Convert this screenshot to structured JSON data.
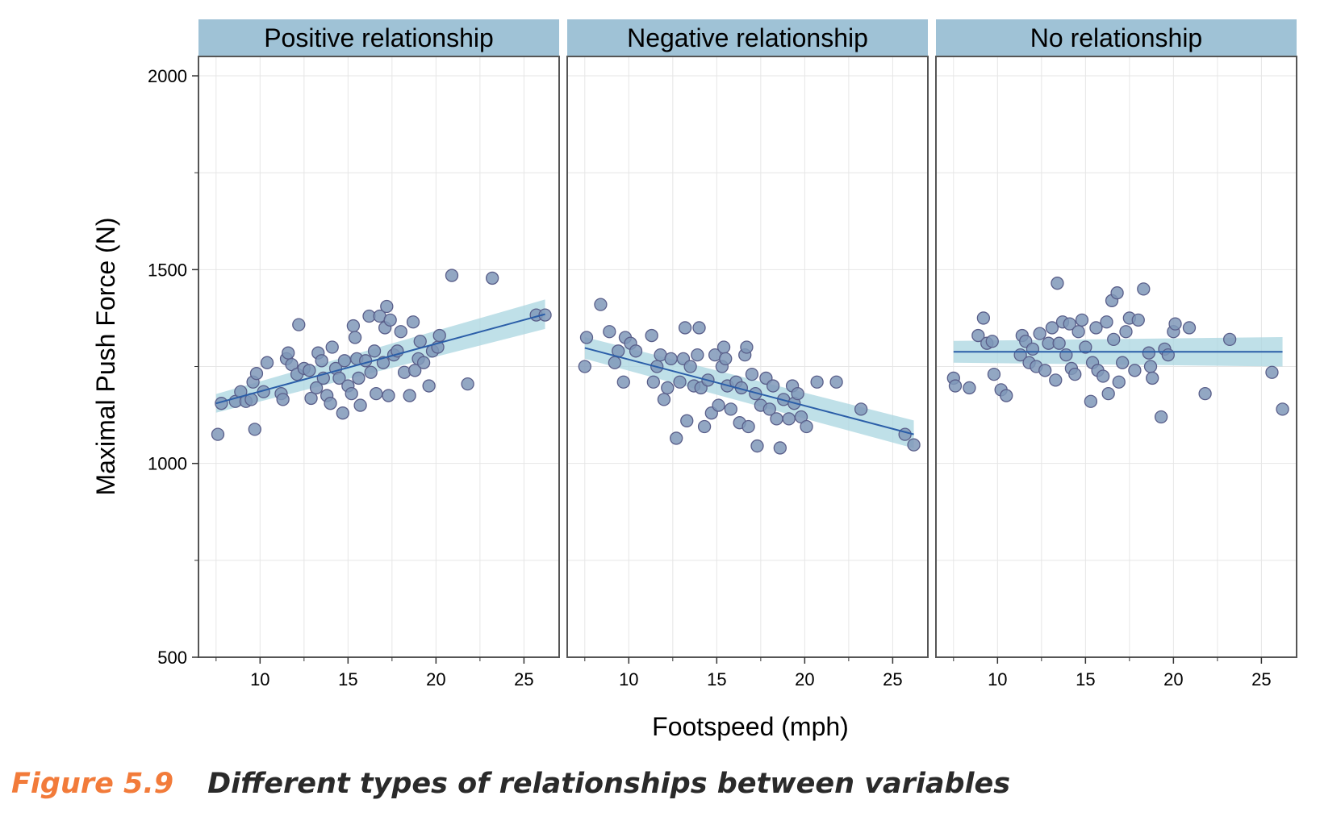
{
  "chart_data": {
    "type": "scatter",
    "xlabel": "Footspeed (mph)",
    "ylabel": "Maximal Push Force (N)",
    "xlim": [
      6.5,
      27
    ],
    "ylim": [
      500,
      2050
    ],
    "x_ticks": [
      10,
      15,
      20,
      25
    ],
    "y_ticks": [
      500,
      1000,
      1500,
      2000
    ],
    "grid": true,
    "colors": {
      "point_fill": "#7f98b8",
      "point_stroke": "#5a5f8a",
      "line": "#2b5ea8",
      "band": "#a9d6e0",
      "strip": "#9fc2d6",
      "panel_border": "#555555",
      "grid": "#e6e6e6"
    },
    "panels": [
      {
        "title": "Positive relationship",
        "fit": {
          "x": [
            7.5,
            26.2
          ],
          "y": [
            1155,
            1385
          ],
          "band_half_width": [
            24,
            38
          ]
        },
        "points": [
          [
            7.6,
            1075
          ],
          [
            7.8,
            1155
          ],
          [
            8.6,
            1160
          ],
          [
            8.9,
            1185
          ],
          [
            9.2,
            1160
          ],
          [
            9.5,
            1165
          ],
          [
            9.6,
            1210
          ],
          [
            9.7,
            1088
          ],
          [
            9.8,
            1232
          ],
          [
            10.2,
            1185
          ],
          [
            10.4,
            1260
          ],
          [
            11.2,
            1180
          ],
          [
            11.3,
            1165
          ],
          [
            11.5,
            1270
          ],
          [
            11.6,
            1285
          ],
          [
            11.8,
            1255
          ],
          [
            12.1,
            1230
          ],
          [
            12.2,
            1358
          ],
          [
            12.5,
            1245
          ],
          [
            12.8,
            1240
          ],
          [
            12.9,
            1168
          ],
          [
            13.2,
            1195
          ],
          [
            13.3,
            1285
          ],
          [
            13.5,
            1265
          ],
          [
            13.6,
            1220
          ],
          [
            13.8,
            1175
          ],
          [
            14,
            1155
          ],
          [
            14.1,
            1300
          ],
          [
            14.3,
            1245
          ],
          [
            14.5,
            1220
          ],
          [
            14.7,
            1130
          ],
          [
            14.8,
            1265
          ],
          [
            15,
            1200
          ],
          [
            15.2,
            1180
          ],
          [
            15.3,
            1355
          ],
          [
            15.4,
            1325
          ],
          [
            15.5,
            1270
          ],
          [
            15.6,
            1220
          ],
          [
            15.7,
            1150
          ],
          [
            16,
            1265
          ],
          [
            16.2,
            1380
          ],
          [
            16.3,
            1235
          ],
          [
            16.5,
            1290
          ],
          [
            16.6,
            1180
          ],
          [
            16.8,
            1380
          ],
          [
            17,
            1260
          ],
          [
            17.1,
            1350
          ],
          [
            17.2,
            1405
          ],
          [
            17.3,
            1175
          ],
          [
            17.4,
            1370
          ],
          [
            17.6,
            1280
          ],
          [
            17.8,
            1290
          ],
          [
            18,
            1340
          ],
          [
            18.2,
            1235
          ],
          [
            18.5,
            1175
          ],
          [
            18.7,
            1365
          ],
          [
            18.8,
            1240
          ],
          [
            19,
            1270
          ],
          [
            19.1,
            1315
          ],
          [
            19.3,
            1260
          ],
          [
            19.6,
            1200
          ],
          [
            19.8,
            1290
          ],
          [
            20.1,
            1300
          ],
          [
            20.2,
            1330
          ],
          [
            20.9,
            1485
          ],
          [
            21.8,
            1205
          ],
          [
            23.2,
            1478
          ],
          [
            25.7,
            1383
          ],
          [
            26.2,
            1383
          ]
        ]
      },
      {
        "title": "Negative relationship",
        "fit": {
          "x": [
            7.5,
            26.2
          ],
          "y": [
            1298,
            1075
          ],
          "band_half_width": [
            28,
            36
          ]
        },
        "points": [
          [
            7.5,
            1250
          ],
          [
            7.6,
            1325
          ],
          [
            8.4,
            1410
          ],
          [
            8.9,
            1340
          ],
          [
            9.2,
            1260
          ],
          [
            9.4,
            1290
          ],
          [
            9.7,
            1210
          ],
          [
            9.8,
            1325
          ],
          [
            10.1,
            1310
          ],
          [
            10.4,
            1290
          ],
          [
            11.3,
            1330
          ],
          [
            11.4,
            1210
          ],
          [
            11.6,
            1250
          ],
          [
            11.8,
            1280
          ],
          [
            12,
            1165
          ],
          [
            12.2,
            1195
          ],
          [
            12.4,
            1270
          ],
          [
            12.7,
            1065
          ],
          [
            12.9,
            1210
          ],
          [
            13.1,
            1270
          ],
          [
            13.2,
            1350
          ],
          [
            13.3,
            1110
          ],
          [
            13.5,
            1250
          ],
          [
            13.7,
            1200
          ],
          [
            13.9,
            1280
          ],
          [
            14,
            1350
          ],
          [
            14.1,
            1195
          ],
          [
            14.3,
            1095
          ],
          [
            14.5,
            1215
          ],
          [
            14.7,
            1130
          ],
          [
            14.9,
            1280
          ],
          [
            15.1,
            1150
          ],
          [
            15.3,
            1250
          ],
          [
            15.4,
            1300
          ],
          [
            15.5,
            1270
          ],
          [
            15.6,
            1200
          ],
          [
            15.8,
            1140
          ],
          [
            16.1,
            1210
          ],
          [
            16.3,
            1105
          ],
          [
            16.4,
            1195
          ],
          [
            16.6,
            1280
          ],
          [
            16.7,
            1300
          ],
          [
            16.8,
            1095
          ],
          [
            17,
            1230
          ],
          [
            17.2,
            1180
          ],
          [
            17.3,
            1045
          ],
          [
            17.5,
            1150
          ],
          [
            17.8,
            1220
          ],
          [
            18,
            1140
          ],
          [
            18.2,
            1200
          ],
          [
            18.4,
            1115
          ],
          [
            18.6,
            1040
          ],
          [
            18.8,
            1165
          ],
          [
            19.1,
            1115
          ],
          [
            19.3,
            1200
          ],
          [
            19.4,
            1155
          ],
          [
            19.6,
            1180
          ],
          [
            19.8,
            1120
          ],
          [
            20.1,
            1095
          ],
          [
            20.7,
            1210
          ],
          [
            21.8,
            1210
          ],
          [
            23.2,
            1140
          ],
          [
            25.7,
            1075
          ],
          [
            26.2,
            1048
          ]
        ]
      },
      {
        "title": "No relationship",
        "fit": {
          "x": [
            7.5,
            26.2
          ],
          "y": [
            1288,
            1288
          ],
          "band_half_width": [
            28,
            38
          ]
        },
        "points": [
          [
            7.5,
            1220
          ],
          [
            7.6,
            1200
          ],
          [
            8.4,
            1195
          ],
          [
            8.9,
            1330
          ],
          [
            9.2,
            1375
          ],
          [
            9.4,
            1310
          ],
          [
            9.7,
            1315
          ],
          [
            9.8,
            1230
          ],
          [
            10.2,
            1190
          ],
          [
            10.5,
            1175
          ],
          [
            11.3,
            1280
          ],
          [
            11.4,
            1330
          ],
          [
            11.6,
            1315
          ],
          [
            11.8,
            1260
          ],
          [
            12,
            1295
          ],
          [
            12.2,
            1250
          ],
          [
            12.4,
            1335
          ],
          [
            12.7,
            1240
          ],
          [
            12.9,
            1310
          ],
          [
            13.1,
            1350
          ],
          [
            13.3,
            1215
          ],
          [
            13.4,
            1465
          ],
          [
            13.5,
            1310
          ],
          [
            13.7,
            1365
          ],
          [
            13.9,
            1280
          ],
          [
            14.1,
            1360
          ],
          [
            14.2,
            1245
          ],
          [
            14.4,
            1230
          ],
          [
            14.6,
            1340
          ],
          [
            14.8,
            1370
          ],
          [
            15,
            1300
          ],
          [
            15.3,
            1160
          ],
          [
            15.4,
            1260
          ],
          [
            15.6,
            1350
          ],
          [
            15.7,
            1240
          ],
          [
            16,
            1225
          ],
          [
            16.2,
            1365
          ],
          [
            16.3,
            1180
          ],
          [
            16.5,
            1420
          ],
          [
            16.6,
            1320
          ],
          [
            16.8,
            1440
          ],
          [
            16.9,
            1210
          ],
          [
            17.1,
            1260
          ],
          [
            17.3,
            1340
          ],
          [
            17.5,
            1375
          ],
          [
            17.8,
            1240
          ],
          [
            18,
            1370
          ],
          [
            18.3,
            1450
          ],
          [
            18.6,
            1285
          ],
          [
            18.7,
            1250
          ],
          [
            18.8,
            1220
          ],
          [
            19.3,
            1120
          ],
          [
            19.5,
            1295
          ],
          [
            19.7,
            1280
          ],
          [
            20,
            1340
          ],
          [
            20.1,
            1360
          ],
          [
            20.9,
            1350
          ],
          [
            21.8,
            1180
          ],
          [
            23.2,
            1320
          ],
          [
            25.6,
            1235
          ],
          [
            26.2,
            1140
          ]
        ]
      }
    ]
  },
  "caption": {
    "label": "Figure 5.9",
    "text": "Different types of relationships between variables"
  }
}
